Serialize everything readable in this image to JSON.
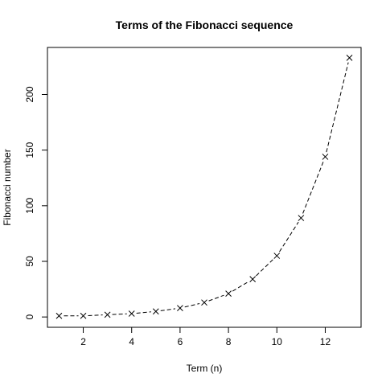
{
  "chart_data": {
    "type": "line",
    "title": "Terms of the Fibonacci sequence",
    "xlabel": "Term (n)",
    "ylabel": "Fibonacci number",
    "x": [
      1,
      2,
      3,
      4,
      5,
      6,
      7,
      8,
      9,
      10,
      11,
      12,
      13
    ],
    "values": [
      1,
      1,
      2,
      3,
      5,
      8,
      13,
      21,
      34,
      55,
      89,
      144,
      233
    ],
    "xlim": [
      0.52,
      13.48
    ],
    "ylim": [
      -9.28,
      242.28
    ],
    "x_ticks": [
      2,
      4,
      6,
      8,
      10,
      12
    ],
    "y_ticks": [
      0,
      50,
      100,
      150,
      200
    ],
    "x_tick_labels": [
      "2",
      "4",
      "6",
      "8",
      "10",
      "12"
    ],
    "y_tick_labels": [
      "0",
      "50",
      "100",
      "150",
      "200"
    ],
    "line_style": "dashed",
    "marker": "x",
    "color": "#000000",
    "grid": false,
    "legend": "none"
  }
}
